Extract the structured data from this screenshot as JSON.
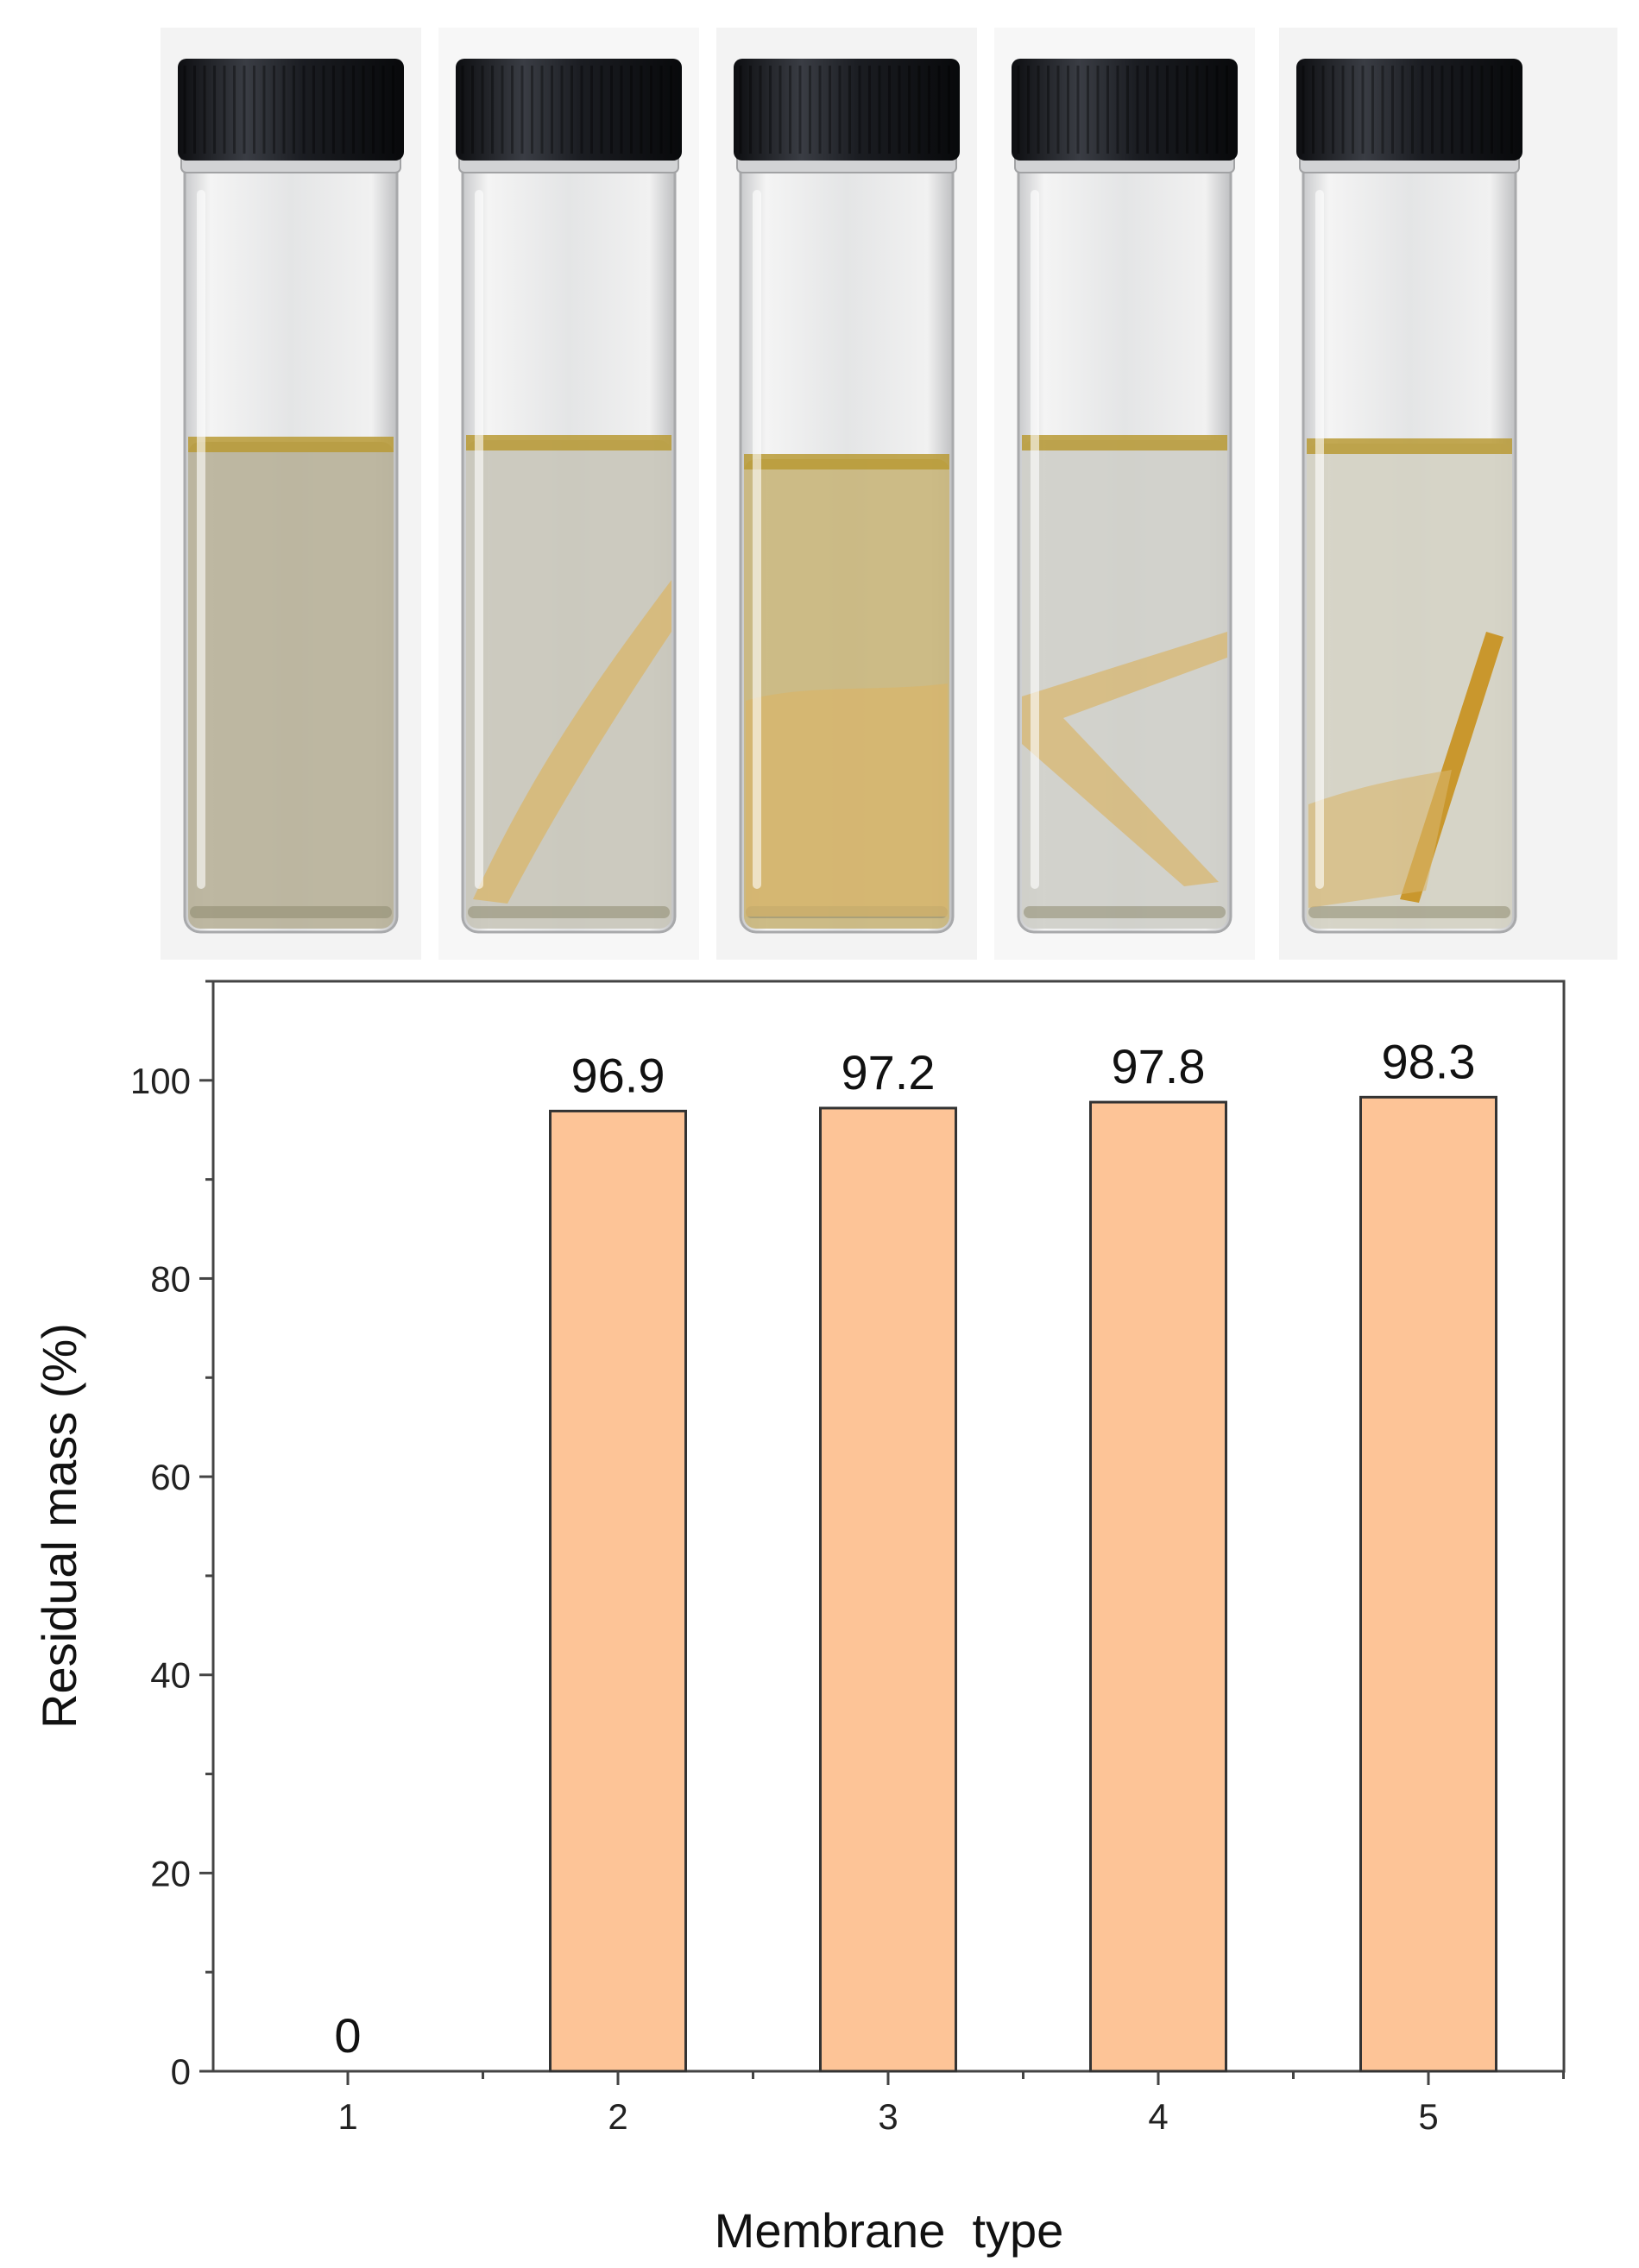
{
  "photo": {
    "vials": [
      {
        "liquid": "#b8b29a",
        "film": null
      },
      {
        "liquid": "#c9c7bb",
        "film": "sheet"
      },
      {
        "liquid": "#c9b67d",
        "film": "pile"
      },
      {
        "liquid": "#cfcfc9",
        "film": "folded"
      },
      {
        "liquid": "#d4d1c3",
        "film": "strip"
      }
    ],
    "colors": {
      "cap": "#1b1d22",
      "glass": "#dedfe0",
      "meniscus": "#b89a35",
      "film": "#d9b56a",
      "backdrop": "#f3f3f3"
    }
  },
  "chart_data": {
    "type": "bar",
    "categories": [
      "1",
      "2",
      "3",
      "4",
      "5"
    ],
    "values": [
      0,
      96.9,
      97.2,
      97.8,
      98.3
    ],
    "data_labels": [
      "0",
      "96.9",
      "97.2",
      "97.8",
      "98.3"
    ],
    "xlabel": "Membrane  type",
    "ylabel": "Residual mass (%)",
    "ylim": [
      0,
      110
    ],
    "yticks": [
      0,
      20,
      40,
      60,
      80,
      100
    ],
    "grid": false,
    "bar_color": "#fdc497",
    "bar_edge": "#333333"
  }
}
